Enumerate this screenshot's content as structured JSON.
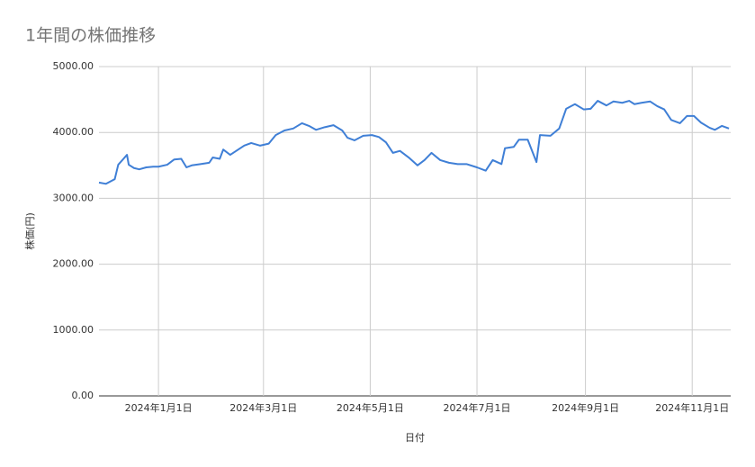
{
  "chart_data": {
    "type": "line",
    "title": "1年間の株価推移",
    "x_label": "日付",
    "y_label": "株価(円)",
    "grid": true,
    "xlim": [
      "2023-11-28",
      "2024-11-23"
    ],
    "xticks": [
      {
        "value": "2024-01-01",
        "label": "2024年1月1日"
      },
      {
        "value": "2024-03-01",
        "label": "2024年3月1日"
      },
      {
        "value": "2024-05-01",
        "label": "2024年5月1日"
      },
      {
        "value": "2024-07-01",
        "label": "2024年7月1日"
      },
      {
        "value": "2024-09-01",
        "label": "2024年9月1日"
      },
      {
        "value": "2024-11-01",
        "label": "2024年11月1日"
      }
    ],
    "ylim": [
      0,
      5000
    ],
    "yticks": [
      {
        "value": 0,
        "label": "0.00"
      },
      {
        "value": 1000,
        "label": "1000.00"
      },
      {
        "value": 2000,
        "label": "2000.00"
      },
      {
        "value": 3000,
        "label": "3000.00"
      },
      {
        "value": 4000,
        "label": "4000.00"
      },
      {
        "value": 5000,
        "label": "5000.00"
      }
    ],
    "x": [
      "2023-11-28",
      "2023-12-02",
      "2023-12-07",
      "2023-12-09",
      "2023-12-12",
      "2023-12-14",
      "2023-12-15",
      "2023-12-18",
      "2023-12-21",
      "2023-12-25",
      "2023-12-29",
      "2024-01-01",
      "2024-01-06",
      "2024-01-10",
      "2024-01-14",
      "2024-01-17",
      "2024-01-20",
      "2024-01-25",
      "2024-01-30",
      "2024-02-01",
      "2024-02-05",
      "2024-02-07",
      "2024-02-11",
      "2024-02-15",
      "2024-02-19",
      "2024-02-23",
      "2024-02-28",
      "2024-03-04",
      "2024-03-08",
      "2024-03-13",
      "2024-03-18",
      "2024-03-23",
      "2024-03-27",
      "2024-03-31",
      "2024-04-05",
      "2024-04-10",
      "2024-04-15",
      "2024-04-18",
      "2024-04-22",
      "2024-04-27",
      "2024-05-02",
      "2024-05-06",
      "2024-05-10",
      "2024-05-14",
      "2024-05-18",
      "2024-05-23",
      "2024-05-28",
      "2024-06-01",
      "2024-06-05",
      "2024-06-10",
      "2024-06-15",
      "2024-06-20",
      "2024-06-25",
      "2024-07-01",
      "2024-07-06",
      "2024-07-10",
      "2024-07-15",
      "2024-07-17",
      "2024-07-22",
      "2024-07-25",
      "2024-07-30",
      "2024-08-04",
      "2024-08-06",
      "2024-08-12",
      "2024-08-17",
      "2024-08-21",
      "2024-08-26",
      "2024-08-31",
      "2024-09-04",
      "2024-09-08",
      "2024-09-13",
      "2024-09-17",
      "2024-09-22",
      "2024-09-26",
      "2024-09-29",
      "2024-10-03",
      "2024-10-08",
      "2024-10-12",
      "2024-10-16",
      "2024-10-20",
      "2024-10-25",
      "2024-10-29",
      "2024-11-02",
      "2024-11-06",
      "2024-11-11",
      "2024-11-14",
      "2024-11-18",
      "2024-11-22"
    ],
    "series": [
      {
        "name": "株価",
        "color": "#3f7fd6",
        "values": [
          3240,
          3220,
          3290,
          3510,
          3600,
          3660,
          3510,
          3460,
          3440,
          3470,
          3480,
          3480,
          3510,
          3590,
          3600,
          3470,
          3500,
          3520,
          3540,
          3620,
          3600,
          3740,
          3660,
          3730,
          3800,
          3840,
          3800,
          3830,
          3960,
          4030,
          4060,
          4140,
          4100,
          4040,
          4080,
          4110,
          4030,
          3920,
          3880,
          3950,
          3960,
          3930,
          3850,
          3690,
          3720,
          3620,
          3500,
          3580,
          3690,
          3580,
          3540,
          3520,
          3520,
          3470,
          3420,
          3580,
          3520,
          3760,
          3780,
          3890,
          3890,
          3550,
          3960,
          3950,
          4060,
          4360,
          4430,
          4350,
          4360,
          4480,
          4410,
          4470,
          4450,
          4480,
          4430,
          4450,
          4470,
          4400,
          4350,
          4190,
          4140,
          4250,
          4250,
          4150,
          4070,
          4040,
          4100,
          4060
        ]
      }
    ]
  }
}
